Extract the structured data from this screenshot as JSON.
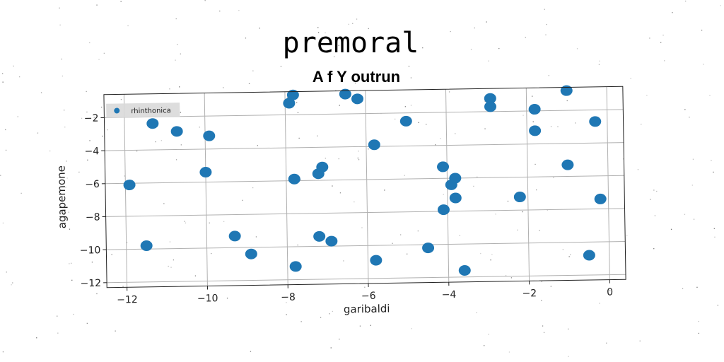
{
  "chart_data": {
    "type": "scatter",
    "title": "premoral",
    "subtitle": "A f Y outrun",
    "xlabel": "garibaldi",
    "ylabel": "agapemone",
    "xlim": [
      -12.5,
      0.4
    ],
    "ylim": [
      -12.3,
      -0.6
    ],
    "xticks": [
      -12,
      -10,
      -8,
      -6,
      -4,
      -2,
      0
    ],
    "yticks": [
      -12,
      -10,
      -8,
      -6,
      -4,
      -2
    ],
    "xtick_labels": [
      "−12",
      "−10",
      "−8",
      "−6",
      "−4",
      "−2",
      "0"
    ],
    "ytick_labels": [
      "−12",
      "−10",
      "−8",
      "−6",
      "−4",
      "−2"
    ],
    "grid": true,
    "legend_position": "top-left",
    "color": "#1f77b4",
    "series": [
      {
        "name": "rhinthonica",
        "points": [
          [
            -11.9,
            -6.1
          ],
          [
            -11.3,
            -2.4
          ],
          [
            -11.5,
            -9.8
          ],
          [
            -10.7,
            -2.9
          ],
          [
            -10.0,
            -5.4
          ],
          [
            -9.9,
            -3.2
          ],
          [
            -9.3,
            -9.3
          ],
          [
            -8.9,
            -10.4
          ],
          [
            -7.9,
            -1.3
          ],
          [
            -7.8,
            -0.8
          ],
          [
            -7.8,
            -5.9
          ],
          [
            -7.8,
            -11.2
          ],
          [
            -7.2,
            -5.6
          ],
          [
            -7.1,
            -5.2
          ],
          [
            -7.2,
            -9.4
          ],
          [
            -6.9,
            -9.7
          ],
          [
            -6.5,
            -0.8
          ],
          [
            -6.2,
            -1.1
          ],
          [
            -5.8,
            -3.9
          ],
          [
            -5.8,
            -10.9
          ],
          [
            -5.0,
            -2.5
          ],
          [
            -4.5,
            -10.2
          ],
          [
            -4.1,
            -5.3
          ],
          [
            -4.1,
            -7.9
          ],
          [
            -3.9,
            -6.4
          ],
          [
            -3.8,
            -6.0
          ],
          [
            -3.8,
            -7.2
          ],
          [
            -3.6,
            -11.6
          ],
          [
            -2.9,
            -1.2
          ],
          [
            -2.9,
            -1.7
          ],
          [
            -2.2,
            -7.2
          ],
          [
            -1.8,
            -1.9
          ],
          [
            -1.8,
            -3.2
          ],
          [
            -1.0,
            -0.8
          ],
          [
            -1.0,
            -5.3
          ],
          [
            -0.5,
            -10.8
          ],
          [
            -0.3,
            -2.7
          ],
          [
            -0.2,
            -7.4
          ]
        ]
      }
    ]
  }
}
